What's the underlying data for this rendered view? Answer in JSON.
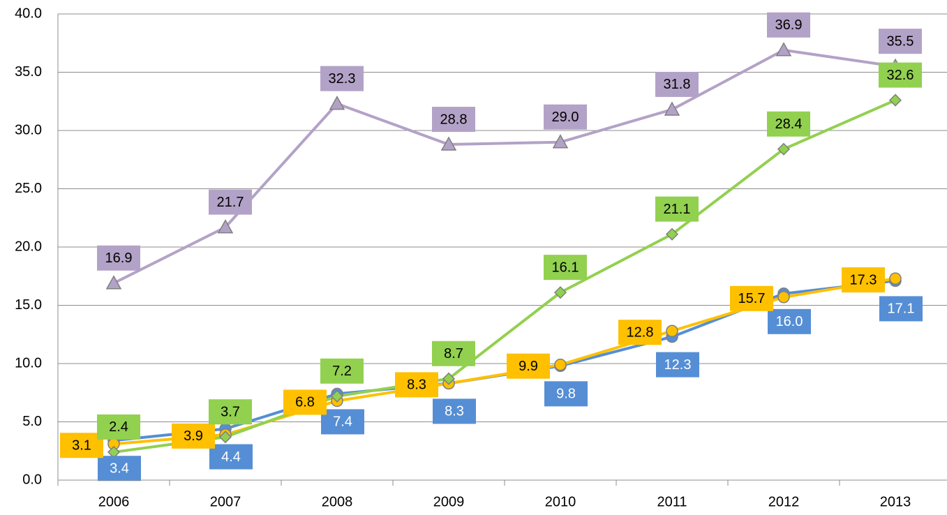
{
  "chart_data": {
    "type": "line",
    "categories": [
      "2006",
      "2007",
      "2008",
      "2009",
      "2010",
      "2011",
      "2012",
      "2013"
    ],
    "series": [
      {
        "color": "#558ed5",
        "marker": "circle",
        "label_position": "below",
        "label_text_color": "#ffffff",
        "values": [
          3.4,
          4.4,
          7.4,
          8.3,
          9.8,
          12.3,
          16.0,
          17.1
        ],
        "value_labels": [
          "3.4",
          "4.4",
          "7.4",
          "8.3",
          "9.8",
          "12.3",
          "16.0",
          "17.1"
        ]
      },
      {
        "color": "#ffc000",
        "marker": "circle",
        "label_position": "left",
        "label_text_color": "#000000",
        "values": [
          3.1,
          3.9,
          6.8,
          8.3,
          9.9,
          12.8,
          15.7,
          17.3
        ],
        "value_labels": [
          "3.1",
          "3.9",
          "6.8",
          "8.3",
          "9.9",
          "12.8",
          "15.7",
          "17.3"
        ]
      },
      {
        "color": "#92d050",
        "marker": "diamond",
        "label_position": "above",
        "label_text_color": "#000000",
        "values": [
          2.4,
          3.7,
          7.2,
          8.7,
          16.1,
          21.1,
          28.4,
          32.6
        ],
        "value_labels": [
          "2.4",
          "3.7",
          "7.2",
          "8.7",
          "16.1",
          "21.1",
          "28.4",
          "32.6"
        ]
      },
      {
        "color": "#b3a2c7",
        "marker": "triangle",
        "label_position": "above",
        "label_text_color": "#000000",
        "values": [
          16.9,
          21.7,
          32.3,
          28.8,
          29.0,
          31.8,
          36.9,
          35.5
        ],
        "value_labels": [
          "16.9",
          "21.7",
          "32.3",
          "28.8",
          "29.0",
          "31.8",
          "36.9",
          "35.5"
        ]
      }
    ],
    "ylim": [
      0,
      40
    ],
    "yticks": [
      {
        "value": 0,
        "label": "0.0"
      },
      {
        "value": 5,
        "label": "5.0"
      },
      {
        "value": 10,
        "label": "10.0"
      },
      {
        "value": 15,
        "label": "15.0"
      },
      {
        "value": 20,
        "label": "20.0"
      },
      {
        "value": 25,
        "label": "25.0"
      },
      {
        "value": 30,
        "label": "30.0"
      },
      {
        "value": 35,
        "label": "35.0"
      },
      {
        "value": 40,
        "label": "40.0"
      }
    ],
    "grid": true
  }
}
